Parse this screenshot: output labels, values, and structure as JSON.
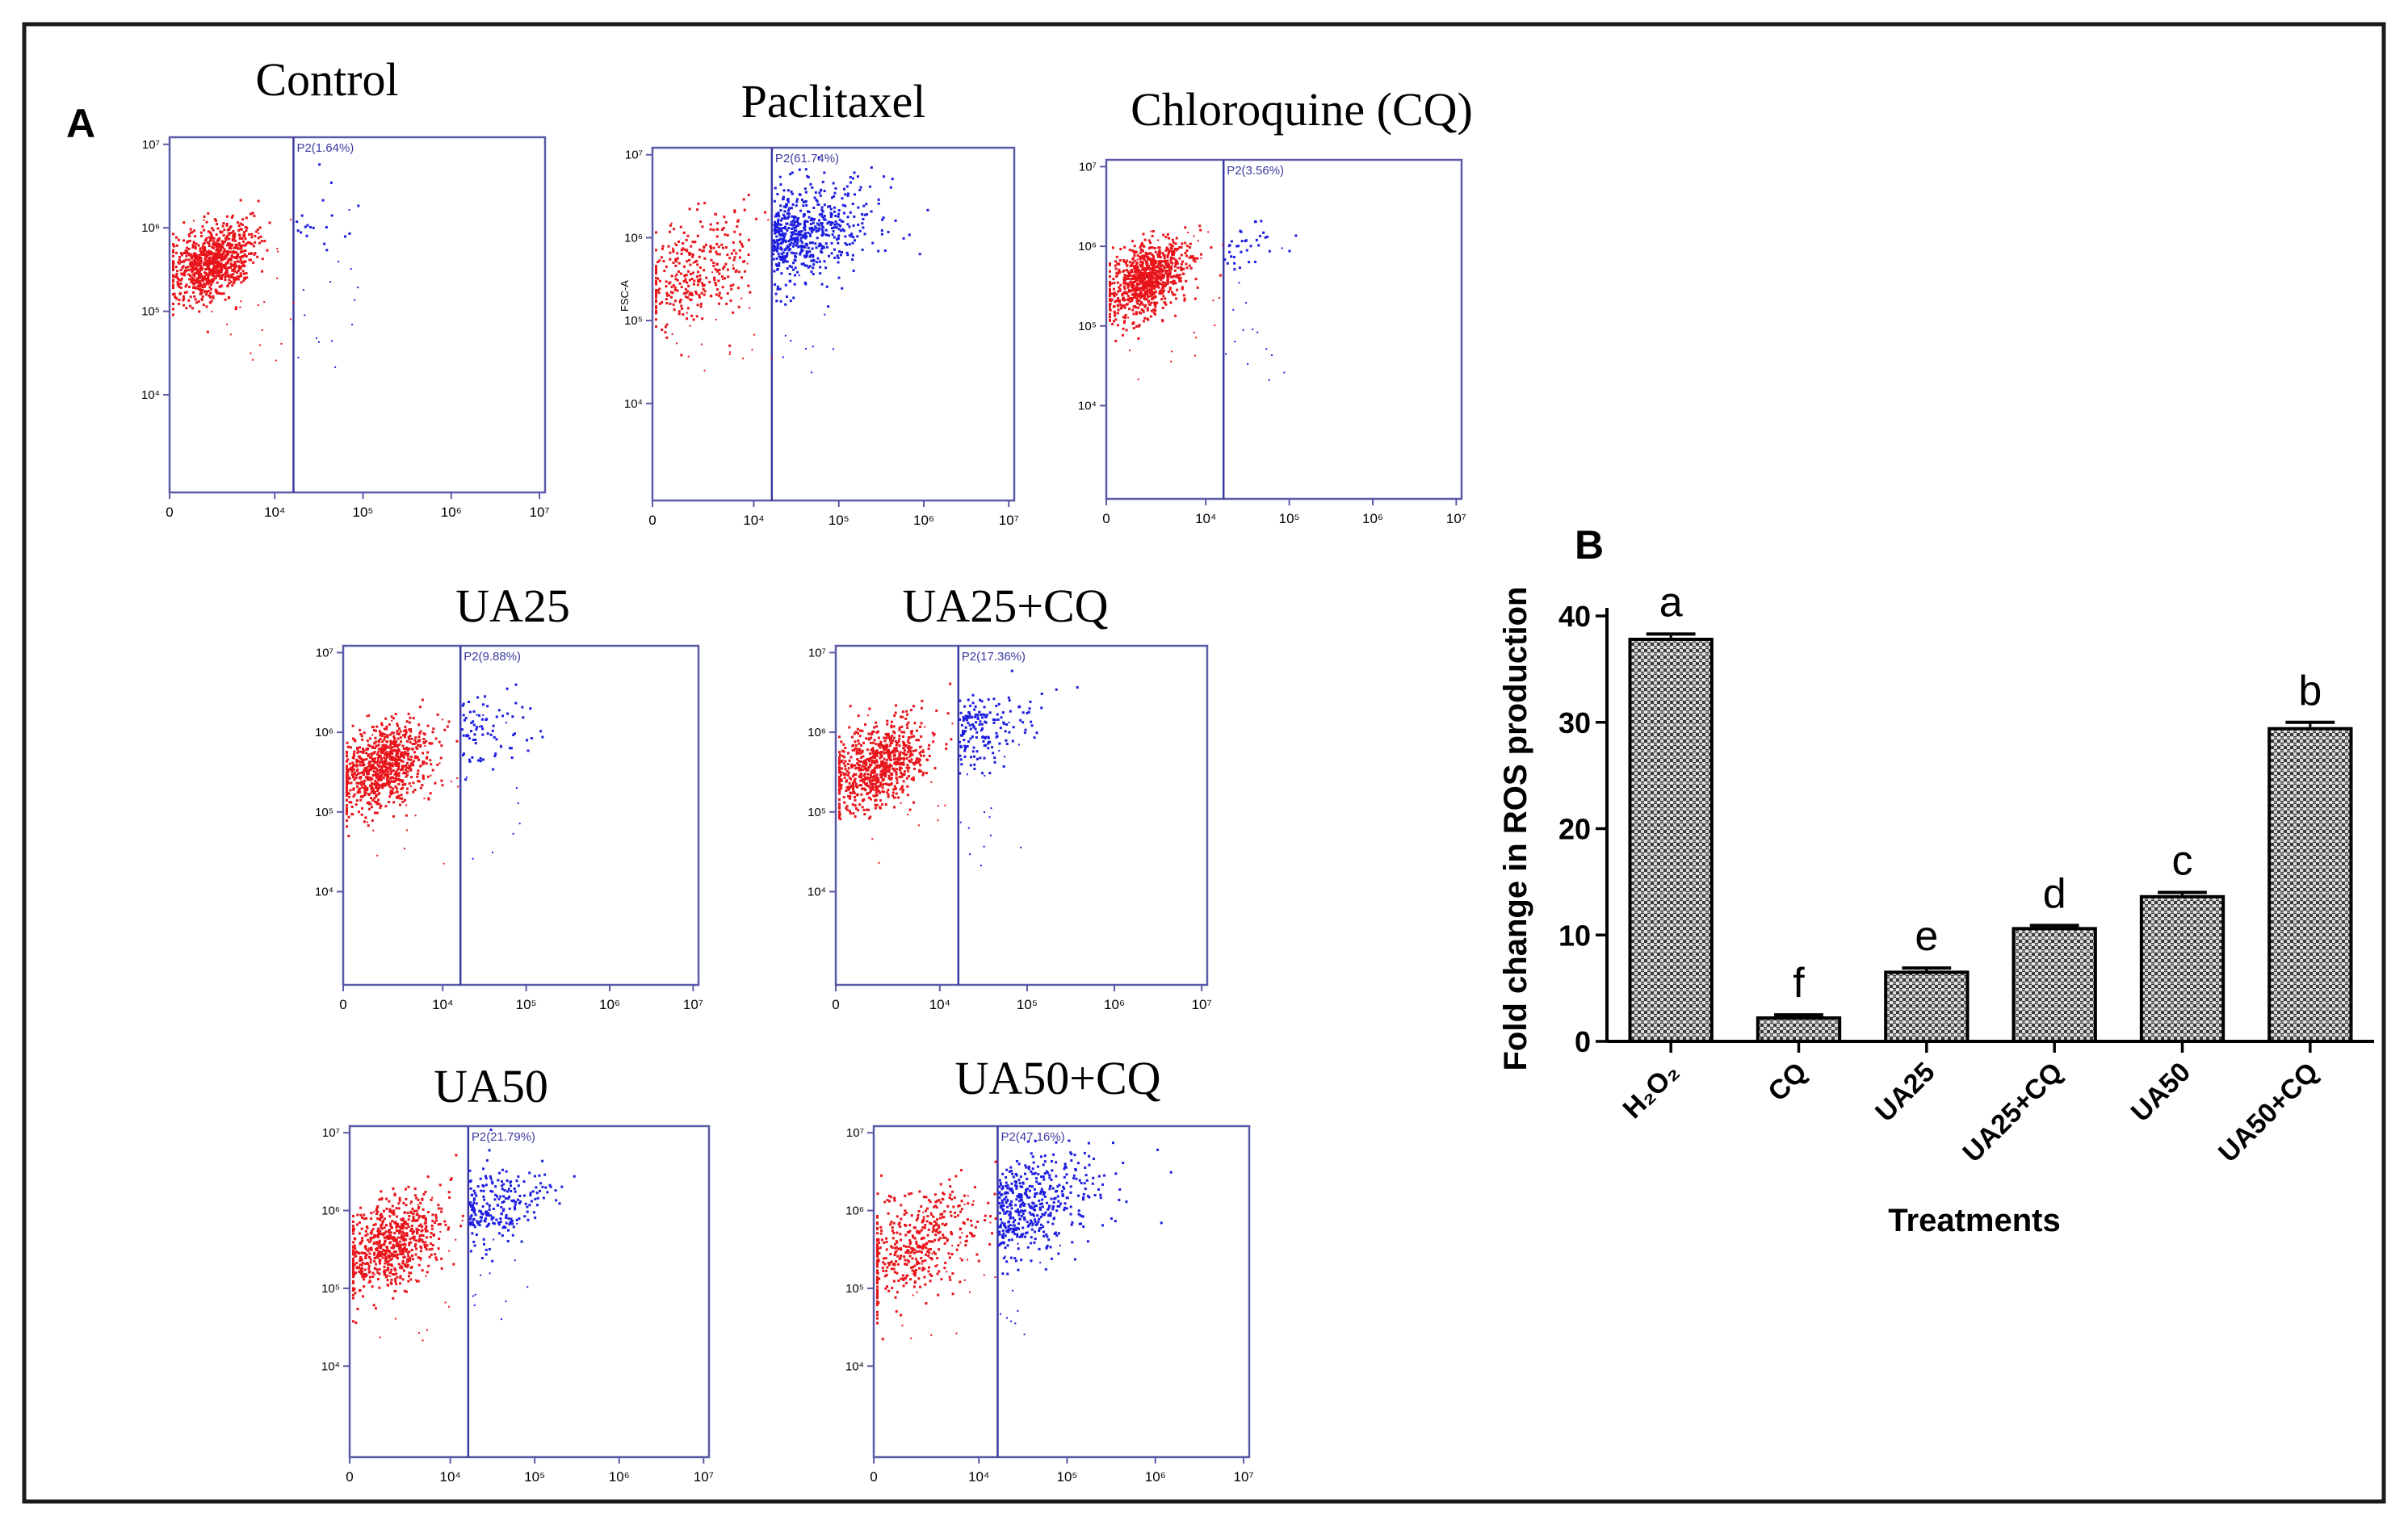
{
  "panel_a": {
    "label": "A",
    "plots": [
      {
        "title": "Control",
        "gate_label": "P2(1.64%)",
        "y_axis_label": "",
        "x_ticks": [
          "0",
          "10⁴",
          "10⁵",
          "10⁶",
          "10⁷"
        ],
        "y_ticks": [
          "10⁷",
          "10⁶",
          "10⁵",
          "10⁴"
        ],
        "gated_fraction": 0.0164
      },
      {
        "title": "Paclitaxel",
        "gate_label": "P2(61.74%)",
        "y_axis_label": "FSC-A",
        "x_ticks": [
          "0",
          "10⁴",
          "10⁵",
          "10⁶",
          "10⁷"
        ],
        "y_ticks": [
          "10⁷",
          "10⁶",
          "10⁵",
          "10⁴"
        ],
        "gated_fraction": 0.6174
      },
      {
        "title": "Chloroquine (CQ)",
        "gate_label": "P2(3.56%)",
        "y_axis_label": "",
        "x_ticks": [
          "0",
          "10⁴",
          "10⁵",
          "10⁶",
          "10⁷"
        ],
        "y_ticks": [
          "10⁷",
          "10⁶",
          "10⁵",
          "10⁴"
        ],
        "gated_fraction": 0.0356
      },
      {
        "title": "UA25",
        "gate_label": "P2(9.88%)",
        "y_axis_label": "",
        "x_ticks": [
          "0",
          "10⁴",
          "10⁵",
          "10⁶",
          "10⁷"
        ],
        "y_ticks": [
          "10⁷",
          "10⁶",
          "10⁵",
          "10⁴"
        ],
        "gated_fraction": 0.0988
      },
      {
        "title": "UA25+CQ",
        "gate_label": "P2(17.36%)",
        "y_axis_label": "",
        "x_ticks": [
          "0",
          "10⁴",
          "10⁵",
          "10⁶",
          "10⁷"
        ],
        "y_ticks": [
          "10⁷",
          "10⁶",
          "10⁵",
          "10⁴"
        ],
        "gated_fraction": 0.1736
      },
      {
        "title": "UA50",
        "gate_label": "P2(21.79%)",
        "y_axis_label": "",
        "x_ticks": [
          "0",
          "10⁴",
          "10⁵",
          "10⁶",
          "10⁷"
        ],
        "y_ticks": [
          "10⁷",
          "10⁶",
          "10⁵",
          "10⁴"
        ],
        "gated_fraction": 0.2179
      },
      {
        "title": "UA50+CQ",
        "gate_label": "P2(47.16%)",
        "y_axis_label": "",
        "x_ticks": [
          "0",
          "10⁴",
          "10⁵",
          "10⁶",
          "10⁷"
        ],
        "y_ticks": [
          "10⁷",
          "10⁶",
          "10⁵",
          "10⁴"
        ],
        "gated_fraction": 0.4716
      }
    ]
  },
  "panel_b": {
    "label": "B"
  },
  "chart_data": {
    "type": "bar",
    "title": "",
    "xlabel": "Treatments",
    "ylabel": "Fold change in ROS production",
    "categories": [
      "H₂O₂",
      "CQ",
      "UA25",
      "UA25+CQ",
      "UA50",
      "UA50+CQ"
    ],
    "values": [
      37.8,
      2.2,
      6.5,
      10.6,
      13.6,
      29.4
    ],
    "errors": [
      0.5,
      0.3,
      0.4,
      0.3,
      0.4,
      0.6
    ],
    "significance": [
      "a",
      "f",
      "e",
      "d",
      "c",
      "b"
    ],
    "y_ticks": [
      0,
      10,
      20,
      30,
      40
    ],
    "ylim": [
      0,
      40
    ],
    "grid": false
  },
  "colors": {
    "frame": "#1a1a1a",
    "axis": "#5a5aa8",
    "gate_line": "#3a3aa0",
    "ungated": "#e8141a",
    "gated": "#1d1de0",
    "text": "#000000",
    "bar_fill": "#c8c8c8",
    "bar_pattern": "#333333"
  }
}
